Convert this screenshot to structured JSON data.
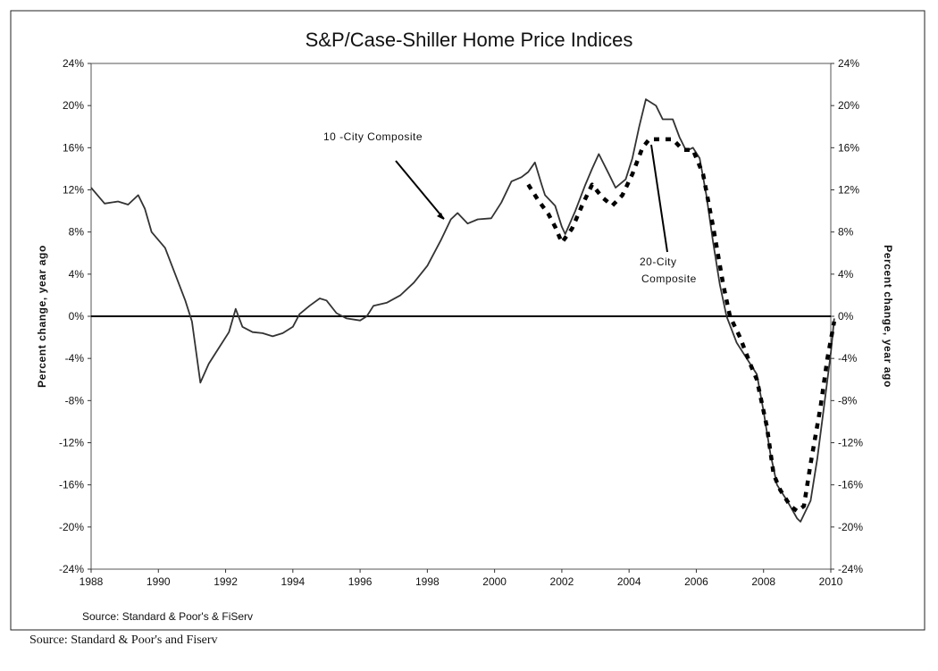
{
  "chart_data": {
    "type": "line",
    "title": "S&P/Case-Shiller Home Price Indices",
    "xlabel": "",
    "ylabel": "Percent change, year ago",
    "ylabel_right": "Percent change, year ago",
    "xlim": [
      1988,
      2010
    ],
    "ylim": [
      -24,
      24
    ],
    "x_ticks": [
      "1988",
      "1990",
      "1992",
      "1994",
      "1996",
      "1998",
      "2000",
      "2002",
      "2004",
      "2006",
      "2008",
      "2010"
    ],
    "y_ticks": [
      "24%",
      "20%",
      "16%",
      "12%",
      "8%",
      "4%",
      "0%",
      "-4%",
      "-8%",
      "-12%",
      "-16%",
      "-20%",
      "-24%"
    ],
    "grid": false,
    "legend": "none (inline annotations)",
    "annotations": [
      "10 -City Composite",
      "20-City Composite"
    ],
    "source_inside": "Source: Standard & Poor's & FiServ",
    "series": [
      {
        "name": "10-City Composite",
        "style": "solid",
        "color": "#333333",
        "x": [
          1988.0,
          1988.4,
          1988.8,
          1989.1,
          1989.4,
          1989.6,
          1989.8,
          1990.2,
          1990.5,
          1990.8,
          1991.0,
          1991.25,
          1991.5,
          1991.8,
          1992.1,
          1992.3,
          1992.5,
          1992.8,
          1993.1,
          1993.4,
          1993.7,
          1994.0,
          1994.2,
          1994.5,
          1994.8,
          1995.0,
          1995.3,
          1995.6,
          1996.0,
          1996.2,
          1996.4,
          1996.8,
          1997.2,
          1997.6,
          1998.0,
          1998.4,
          1998.7,
          1998.9,
          1999.2,
          1999.5,
          1999.9,
          2000.2,
          2000.5,
          2000.8,
          2001.0,
          2001.2,
          2001.4,
          2001.5,
          2001.8,
          2002.0,
          2002.1,
          2002.4,
          2002.7,
          2002.9,
          2003.1,
          2003.4,
          2003.6,
          2003.9,
          2004.1,
          2004.3,
          2004.5,
          2004.8,
          2005.0,
          2005.3,
          2005.5,
          2005.7,
          2005.9,
          2006.1,
          2006.3,
          2006.5,
          2006.7,
          2006.9,
          2007.2,
          2007.5,
          2007.8,
          2008.0,
          2008.2,
          2008.4,
          2008.7,
          2009.0,
          2009.1,
          2009.4,
          2009.6,
          2009.8,
          2010.0,
          2010.1
        ],
        "values": [
          12.2,
          10.7,
          10.9,
          10.6,
          11.5,
          10.2,
          8.0,
          6.5,
          4.0,
          1.5,
          -0.5,
          -6.3,
          -4.5,
          -3.0,
          -1.5,
          0.7,
          -1.0,
          -1.5,
          -1.6,
          -1.9,
          -1.6,
          -1.0,
          0.2,
          1.0,
          1.7,
          1.5,
          0.3,
          -0.2,
          -0.4,
          0.0,
          1.0,
          1.3,
          2.0,
          3.2,
          4.8,
          7.2,
          9.2,
          9.8,
          8.8,
          9.2,
          9.3,
          10.8,
          12.8,
          13.2,
          13.7,
          14.6,
          12.5,
          11.5,
          10.5,
          8.5,
          7.8,
          10.0,
          12.5,
          14.0,
          15.4,
          13.5,
          12.2,
          13.0,
          15.0,
          18.0,
          20.6,
          20.0,
          18.7,
          18.7,
          17.0,
          15.7,
          16.0,
          15.0,
          11.5,
          7.0,
          3.0,
          0.0,
          -2.5,
          -4.0,
          -5.5,
          -9.0,
          -13.0,
          -16.0,
          -17.5,
          -19.2,
          -19.5,
          -17.5,
          -13.5,
          -8.5,
          -3.5,
          -0.2
        ]
      },
      {
        "name": "20-City Composite",
        "style": "dashed",
        "color": "#000000",
        "x": [
          2001.0,
          2001.3,
          2001.6,
          2001.8,
          2002.0,
          2002.3,
          2002.6,
          2002.9,
          2003.2,
          2003.5,
          2003.8,
          2004.1,
          2004.4,
          2004.6,
          2004.9,
          2005.3,
          2005.6,
          2005.9,
          2006.2,
          2006.5,
          2006.8,
          2007.0,
          2007.3,
          2007.6,
          2007.8,
          2008.1,
          2008.3,
          2008.5,
          2008.8,
          2009.0,
          2009.2,
          2009.4,
          2009.7,
          2009.9,
          2010.1
        ],
        "values": [
          12.5,
          11.0,
          9.7,
          8.5,
          7.0,
          8.3,
          10.5,
          12.5,
          11.3,
          10.5,
          11.5,
          13.5,
          16.0,
          16.8,
          16.8,
          16.8,
          15.8,
          15.8,
          13.5,
          8.5,
          3.0,
          0.0,
          -2.0,
          -4.5,
          -6.0,
          -10.5,
          -15.0,
          -16.5,
          -18.0,
          -18.5,
          -18.0,
          -14.0,
          -8.5,
          -4.0,
          -0.5
        ]
      }
    ]
  },
  "footer": {
    "source": "Source: Standard & Poor's and Fiserv"
  }
}
